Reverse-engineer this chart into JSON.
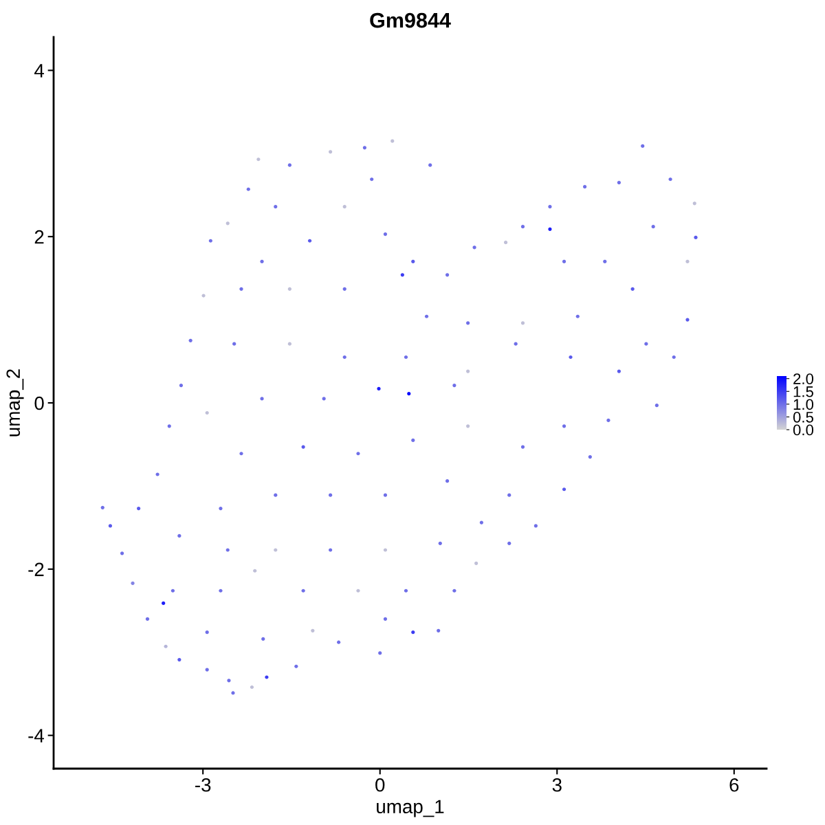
{
  "chart_data": {
    "type": "scatter",
    "title": "Gm9844",
    "xlabel": "umap_1",
    "ylabel": "umap_2",
    "xlim": [
      -5.53,
      6.55
    ],
    "ylim": [
      -4.4,
      4.4
    ],
    "xticks": [
      -3,
      0,
      3,
      6
    ],
    "yticks": [
      -4,
      -2,
      0,
      2,
      4
    ],
    "grid": false,
    "marker": "circle",
    "clim": [
      0,
      2.1
    ],
    "cticks": [
      {
        "value": 0,
        "label": "0.0"
      },
      {
        "value": 0.5,
        "label": "0.5"
      },
      {
        "value": 1,
        "label": "1.0"
      },
      {
        "value": 1.5,
        "label": "1.5"
      },
      {
        "value": 2,
        "label": "2.0"
      }
    ],
    "x": [
      -4.7,
      -4.57,
      -4.37,
      -4.19,
      -3.94,
      -3.63,
      -3.4,
      -2.93,
      -2.56,
      -2.49,
      -2.17,
      -1.92,
      -1.42,
      -1.14,
      -0.7,
      0,
      0.56,
      0.99,
      1.26,
      1.63,
      2.19,
      2.64,
      3.12,
      3.56,
      3.87,
      4.69,
      4.98,
      5.21,
      5.21,
      5.35,
      5.33,
      4.92,
      4.45,
      4.05,
      3.47,
      2.88,
      2.42,
      2.13,
      1.6,
      1.14,
      0.85,
      0.21,
      -0.26,
      -0.84,
      -1.53,
      -2.06,
      -2.23,
      -2.58,
      -2.87,
      -2.99,
      -3.21,
      -3.37,
      -3.57,
      -3.77,
      -4.09,
      -1.77,
      -1.19,
      -0.6,
      0.09,
      0.56,
      -2.35,
      -1.53,
      -0.6,
      0.38,
      -2.47,
      -1.53,
      -0.6,
      0.44,
      1.49,
      2.42,
      3.35,
      4.28,
      3.81,
      3.12,
      4.63,
      4.51,
      4.05,
      3.23,
      2.3,
      1.26,
      0.49,
      -0.02,
      -0.95,
      -2.0,
      -2.93,
      -2.35,
      -1.3,
      -0.37,
      0.56,
      1.49,
      2.42,
      3.12,
      2.19,
      1.14,
      0.09,
      -0.84,
      -1.77,
      -2.7,
      -3.4,
      -2.58,
      -1.77,
      -0.84,
      0.09,
      1.02,
      1.72,
      -3.51,
      -2.7,
      -2.12,
      -1.3,
      -0.37,
      0.44,
      -2.93,
      -1.98,
      0.09,
      -3.67,
      2.88,
      0.79,
      -2.0,
      -0.14,
      1.49
    ],
    "values": [
      -1.26,
      -1.48,
      -1.81,
      -2.17,
      -2.6,
      -2.93,
      -3.09,
      -3.21,
      -3.34,
      -3.49,
      -3.42,
      -3.3,
      -3.17,
      -2.74,
      -2.88,
      -3.01,
      -2.76,
      -2.74,
      -2.26,
      -1.93,
      -1.69,
      -1.48,
      -1.04,
      -0.65,
      -0.21,
      -0.03,
      0.55,
      1.0,
      1.7,
      1.99,
      2.4,
      2.69,
      3.09,
      2.65,
      2.6,
      2.36,
      2.12,
      1.93,
      1.87,
      1.54,
      2.86,
      3.15,
      3.07,
      3.02,
      2.86,
      2.93,
      2.57,
      2.16,
      1.95,
      1.29,
      0.75,
      0.21,
      -0.28,
      -0.86,
      -1.27,
      2.36,
      1.95,
      2.36,
      2.03,
      1.7,
      1.37,
      1.37,
      1.37,
      1.54,
      0.71,
      0.71,
      0.55,
      0.55,
      0.96,
      0.96,
      1.04,
      1.37,
      1.7,
      1.7,
      2.12,
      0.71,
      0.38,
      0.55,
      0.71,
      0.21,
      0.11,
      0.17,
      0.05,
      0.05,
      -0.12,
      -0.61,
      -0.53,
      -0.61,
      -0.45,
      -0.28,
      -0.53,
      -0.28,
      -1.11,
      -0.94,
      -1.11,
      -1.11,
      -1.11,
      -1.27,
      -1.6,
      -1.77,
      -1.77,
      -1.77,
      -1.77,
      -1.69,
      -1.44,
      -2.26,
      -2.26,
      -2.02,
      -2.26,
      -2.26,
      -2.26,
      -2.76,
      -2.84,
      -2.6,
      -2.41,
      2.09,
      1.04,
      1.7,
      2.69,
      0.38
    ],
    "cvalues": [
      1.0,
      1.2,
      1.0,
      0.8,
      1.0,
      0.3,
      1.2,
      1.0,
      1.0,
      1.0,
      0.2,
      1.5,
      1.0,
      0.2,
      1.0,
      1.0,
      1.5,
      1.0,
      1.0,
      0.2,
      1.0,
      1.0,
      1.2,
      1.0,
      1.0,
      1.0,
      1.0,
      1.2,
      0.2,
      1.2,
      0.2,
      1.0,
      1.0,
      1.0,
      1.0,
      1.0,
      1.0,
      0.2,
      1.0,
      1.0,
      1.0,
      0.2,
      1.0,
      0.2,
      1.0,
      0.2,
      1.0,
      0.2,
      1.0,
      0.2,
      1.0,
      1.0,
      1.0,
      1.0,
      1.2,
      1.0,
      1.2,
      0.2,
      1.0,
      1.2,
      1.0,
      0.2,
      1.0,
      1.5,
      1.0,
      0.2,
      1.0,
      1.0,
      1.0,
      0.2,
      1.0,
      1.2,
      1.0,
      1.0,
      1.0,
      1.0,
      1.2,
      1.2,
      1.0,
      1.0,
      2.0,
      1.8,
      1.0,
      1.0,
      0.2,
      1.0,
      1.2,
      1.0,
      1.0,
      0.2,
      1.0,
      1.0,
      1.0,
      1.0,
      1.0,
      1.0,
      1.0,
      1.0,
      1.0,
      1.0,
      0.2,
      1.0,
      0.2,
      1.0,
      1.0,
      1.0,
      1.0,
      0.2,
      1.0,
      0.2,
      1.0,
      1.0,
      1.0,
      1.0,
      1.8,
      1.8,
      1.0,
      1.0,
      1.0,
      0.2
    ]
  }
}
